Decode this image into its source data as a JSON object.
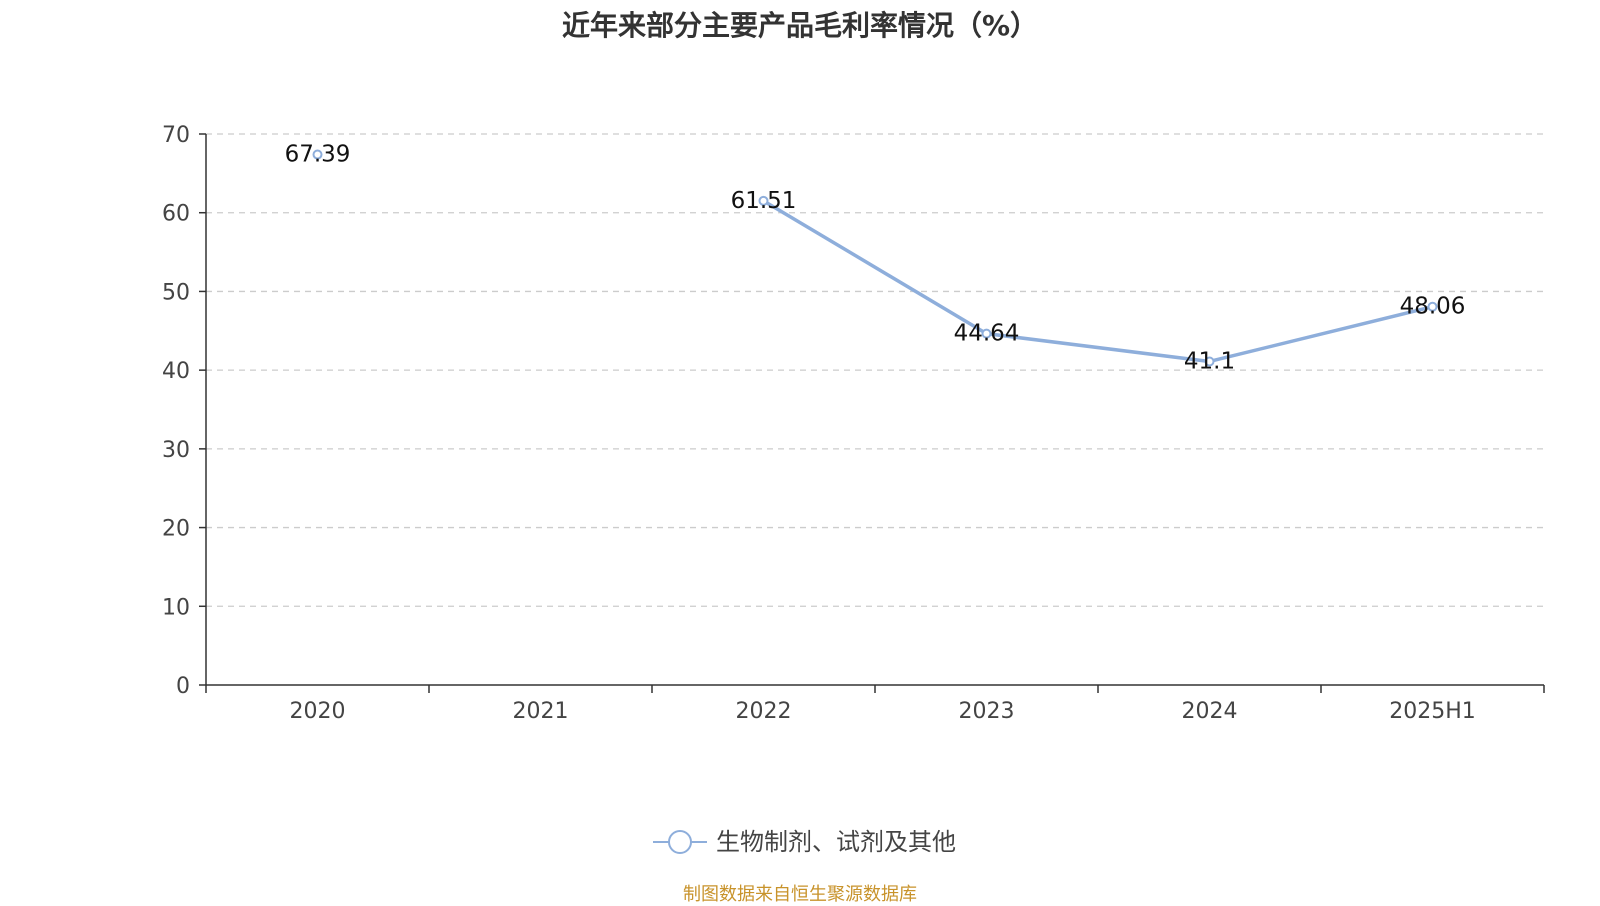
{
  "chart_data": {
    "type": "line",
    "title": "近年来部分主要产品毛利率情况（%）",
    "categories": [
      "2020",
      "2021",
      "2022",
      "2023",
      "2024",
      "2025H1"
    ],
    "series": [
      {
        "name": "生物制剂、试剂及其他",
        "values": [
          67.39,
          null,
          61.51,
          44.64,
          41.1,
          48.06
        ],
        "labels": [
          "67.39",
          "",
          "61.51",
          "44.64",
          "41.1",
          "48.06"
        ],
        "color": "#8eaedb"
      }
    ],
    "ylim": [
      0,
      70
    ],
    "yticks": [
      "0",
      "10",
      "20",
      "30",
      "40",
      "50",
      "60",
      "70"
    ],
    "grid": "horizontal-dashed",
    "legend_position": "bottom-center",
    "xlabel": "",
    "ylabel": ""
  },
  "source_note": "制图数据来自恒生聚源数据库",
  "colors": {
    "line": "#8eaedb",
    "grid": "#cccccc",
    "axis": "#333333",
    "source": "#c8932b"
  }
}
